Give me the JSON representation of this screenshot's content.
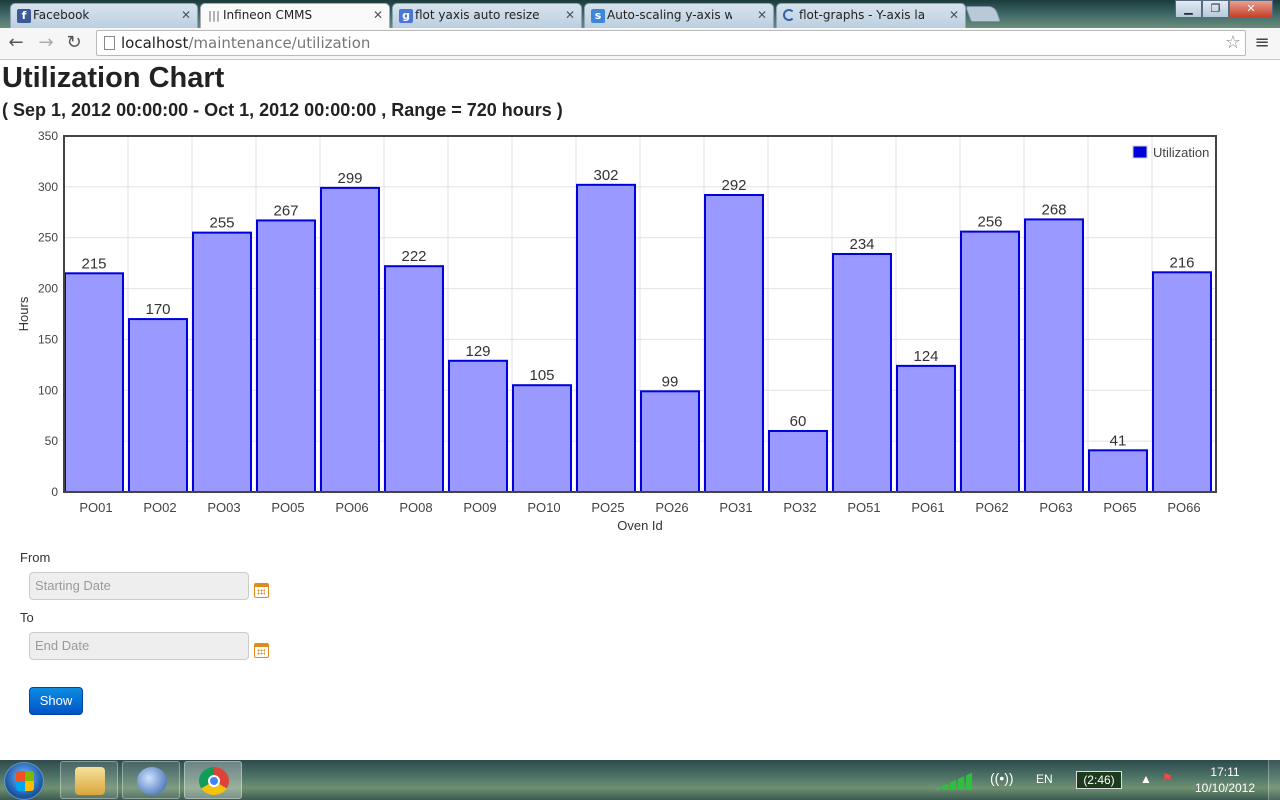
{
  "browser": {
    "tabs": [
      {
        "title": "Facebook",
        "favicon": "facebook-icon",
        "color": "#3b5998"
      },
      {
        "title": "Infineon CMMS",
        "favicon": "bars-icon",
        "color": "#888888"
      },
      {
        "title": "flot yaxis auto resize - Goo",
        "favicon": "google-icon",
        "color": "#4a78d8"
      },
      {
        "title": "Auto-scaling y-axis with fil",
        "favicon": "stackoverflow-icon",
        "color": "#3d86d8"
      },
      {
        "title": "flot-graphs - Y-axis labels r",
        "favicon": "loading-icon",
        "color": "#3060b0"
      }
    ],
    "url_host": "localhost",
    "url_path": "/maintenance/utilization"
  },
  "page": {
    "title": "Utilization Chart",
    "subtitle": "( Sep 1, 2012 00:00:00 - Oct 1, 2012 00:00:00 , Range = 720 hours )"
  },
  "chart_data": {
    "type": "bar",
    "categories": [
      "PO01",
      "PO02",
      "PO03",
      "PO05",
      "PO06",
      "PO08",
      "PO09",
      "PO10",
      "PO25",
      "PO26",
      "PO31",
      "PO32",
      "PO51",
      "PO61",
      "PO62",
      "PO63",
      "PO65",
      "PO66"
    ],
    "series": [
      {
        "name": "Utilization",
        "values": [
          215,
          170,
          255,
          267,
          299,
          222,
          129,
          105,
          302,
          99,
          292,
          60,
          234,
          124,
          256,
          268,
          41,
          216
        ]
      }
    ],
    "xlabel": "Oven Id",
    "ylabel": "Hours",
    "ylim": [
      0,
      350
    ],
    "yticks": [
      0,
      50,
      100,
      150,
      200,
      250,
      300,
      350
    ],
    "grid": true,
    "legend_position": "top-right",
    "bar_fill": "#9999ff",
    "bar_stroke": "#0000dd",
    "legend_swatch": "#0000dd"
  },
  "form": {
    "from_label": "From",
    "from_placeholder": "Starting Date",
    "to_label": "To",
    "to_placeholder": "End Date",
    "show_button": "Show"
  },
  "taskbar": {
    "language": "EN",
    "battery": "(2:46)",
    "time": "17:11",
    "date": "10/10/2012"
  }
}
